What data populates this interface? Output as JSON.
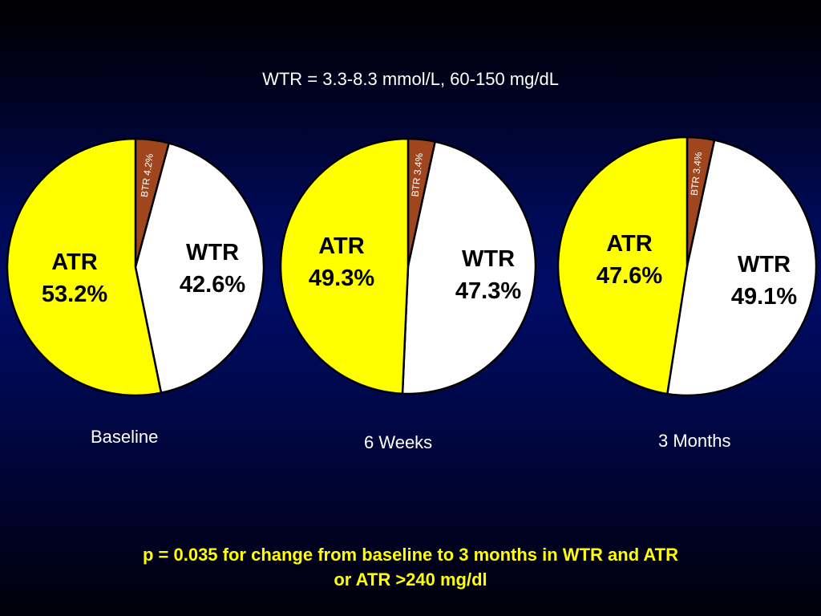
{
  "subtitle": "WTR = 3.3-8.3 mmol/L, 60-150 mg/dL",
  "footnote": {
    "line1": "p = 0.035 for change from baseline to 3 months in WTR and ATR",
    "line2": "or ATR >240 mg/dl"
  },
  "colors": {
    "ATR": "#ffff00",
    "WTR": "#ffffff",
    "BTR": "#a0461e",
    "outline": "#000000",
    "background": "#000c66"
  },
  "chart_data": [
    {
      "type": "pie",
      "title": "Baseline",
      "slices": [
        {
          "label": "BTR",
          "value": 4.2,
          "text": "4.2%"
        },
        {
          "label": "WTR",
          "value": 42.6,
          "text": "42.6%"
        },
        {
          "label": "ATR",
          "value": 53.2,
          "text": "53.2%"
        }
      ]
    },
    {
      "type": "pie",
      "title": "6 Weeks",
      "slices": [
        {
          "label": "BTR",
          "value": 3.4,
          "text": "3.4%"
        },
        {
          "label": "WTR",
          "value": 47.3,
          "text": "47.3%"
        },
        {
          "label": "ATR",
          "value": 49.3,
          "text": "49.3%"
        }
      ]
    },
    {
      "type": "pie",
      "title": "3 Months",
      "slices": [
        {
          "label": "BTR",
          "value": 3.4,
          "text": "3.4%"
        },
        {
          "label": "WTR",
          "value": 49.1,
          "text": "49.1%"
        },
        {
          "label": "ATR",
          "value": 47.6,
          "text": "47.6%"
        }
      ]
    }
  ]
}
